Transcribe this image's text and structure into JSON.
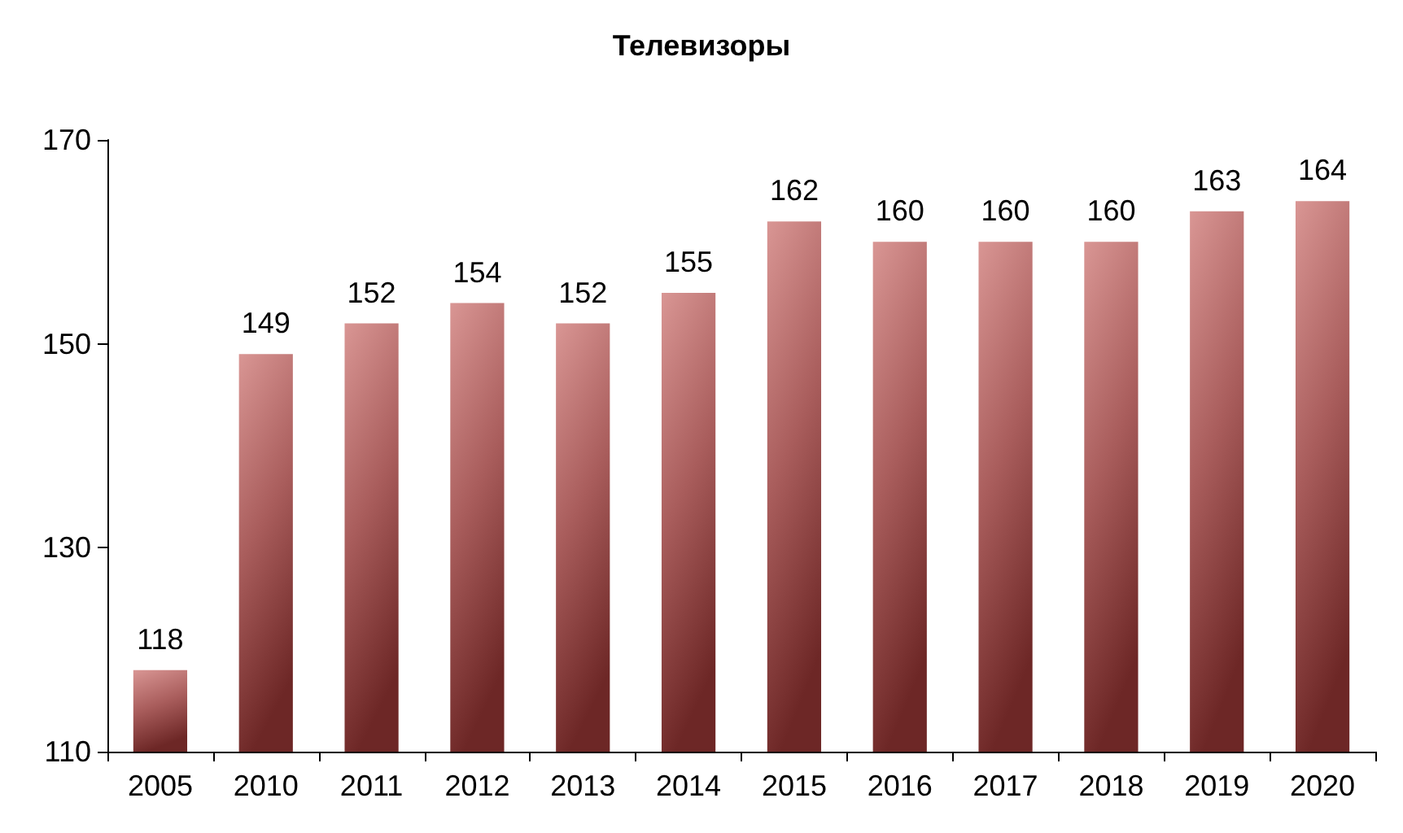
{
  "chart_data": {
    "type": "bar",
    "title": "Телевизоры",
    "categories": [
      "2005",
      "2010",
      "2011",
      "2012",
      "2013",
      "2014",
      "2015",
      "2016",
      "2017",
      "2018",
      "2019",
      "2020"
    ],
    "values": [
      118,
      149,
      152,
      154,
      152,
      155,
      162,
      160,
      160,
      160,
      163,
      164
    ],
    "color": "#d99694",
    "ylim": [
      110,
      170
    ],
    "yticks": [
      110,
      130,
      150,
      170
    ],
    "grid": false,
    "data_labels": true
  }
}
